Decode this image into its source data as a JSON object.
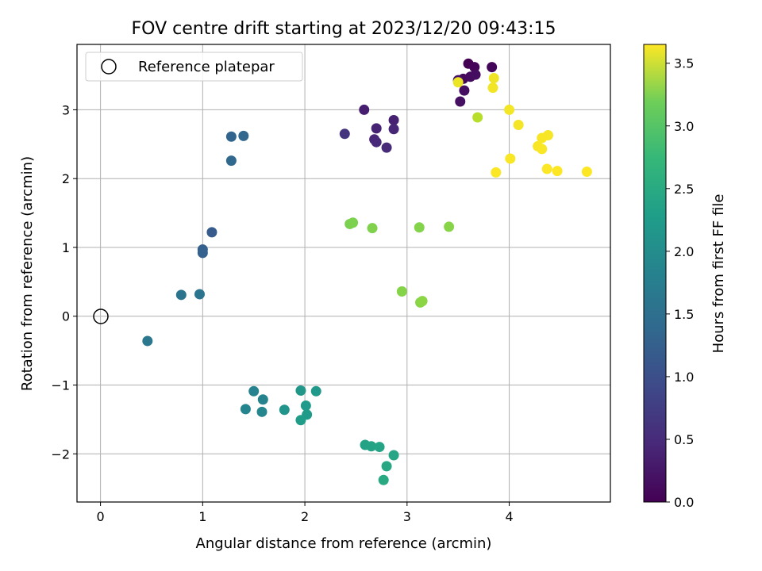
{
  "chart_data": {
    "type": "scatter",
    "title": "FOV centre drift starting at 2023/12/20 09:43:15",
    "xlabel": "Angular distance from reference (arcmin)",
    "ylabel": "Rotation from reference (arcmin)",
    "xlim": [
      -0.23,
      4.99
    ],
    "ylim": [
      -2.7,
      3.95
    ],
    "xticks": [
      0,
      1,
      2,
      3,
      4
    ],
    "yticks": [
      -2,
      -1,
      0,
      1,
      2,
      3
    ],
    "grid": true,
    "legend": {
      "position": "top-left",
      "entries": [
        "Reference platepar"
      ]
    },
    "reference_point": {
      "x": 0,
      "y": 0
    },
    "colorbar": {
      "label": "Hours from first FF file",
      "colormap": "viridis",
      "range": [
        0.0,
        3.65
      ],
      "ticks": [
        "0.0",
        "0.5",
        "1.0",
        "1.5",
        "2.0",
        "2.5",
        "3.0",
        "3.5"
      ],
      "tick_values": [
        0.0,
        0.5,
        1.0,
        1.5,
        2.0,
        2.5,
        3.0,
        3.5
      ]
    },
    "points": [
      {
        "x": 3.6,
        "y": 3.67,
        "c": 0.0
      },
      {
        "x": 3.66,
        "y": 3.62,
        "c": 0.03
      },
      {
        "x": 3.83,
        "y": 3.62,
        "c": 0.05
      },
      {
        "x": 3.55,
        "y": 3.45,
        "c": 0.08
      },
      {
        "x": 3.62,
        "y": 3.48,
        "c": 0.1
      },
      {
        "x": 3.67,
        "y": 3.51,
        "c": 0.12
      },
      {
        "x": 3.56,
        "y": 3.28,
        "c": 0.14
      },
      {
        "x": 3.52,
        "y": 3.12,
        "c": 0.16
      },
      {
        "x": 3.5,
        "y": 3.43,
        "c": 0.18
      },
      {
        "x": 2.58,
        "y": 3.0,
        "c": 0.3
      },
      {
        "x": 2.87,
        "y": 2.85,
        "c": 0.33
      },
      {
        "x": 2.7,
        "y": 2.73,
        "c": 0.35
      },
      {
        "x": 2.87,
        "y": 2.72,
        "c": 0.38
      },
      {
        "x": 2.68,
        "y": 2.57,
        "c": 0.4
      },
      {
        "x": 2.7,
        "y": 2.53,
        "c": 0.42
      },
      {
        "x": 2.8,
        "y": 2.45,
        "c": 0.44
      },
      {
        "x": 2.39,
        "y": 2.65,
        "c": 0.55
      },
      {
        "x": 1.09,
        "y": 1.22,
        "c": 1.05
      },
      {
        "x": 1.0,
        "y": 0.97,
        "c": 1.1
      },
      {
        "x": 1.0,
        "y": 0.92,
        "c": 1.12
      },
      {
        "x": 1.28,
        "y": 2.61,
        "c": 1.18
      },
      {
        "x": 1.4,
        "y": 2.62,
        "c": 1.2
      },
      {
        "x": 1.28,
        "y": 2.26,
        "c": 1.22
      },
      {
        "x": 0.79,
        "y": 0.31,
        "c": 1.4
      },
      {
        "x": 0.97,
        "y": 0.32,
        "c": 1.42
      },
      {
        "x": 0.46,
        "y": -0.36,
        "c": 1.45
      },
      {
        "x": 1.5,
        "y": -1.09,
        "c": 1.62
      },
      {
        "x": 1.59,
        "y": -1.21,
        "c": 1.64
      },
      {
        "x": 1.42,
        "y": -1.35,
        "c": 1.66
      },
      {
        "x": 1.58,
        "y": -1.39,
        "c": 1.68
      },
      {
        "x": 1.8,
        "y": -1.36,
        "c": 1.9
      },
      {
        "x": 1.96,
        "y": -1.08,
        "c": 1.92
      },
      {
        "x": 2.11,
        "y": -1.09,
        "c": 1.95
      },
      {
        "x": 2.01,
        "y": -1.3,
        "c": 1.97
      },
      {
        "x": 2.02,
        "y": -1.43,
        "c": 1.99
      },
      {
        "x": 1.96,
        "y": -1.51,
        "c": 2.01
      },
      {
        "x": 2.59,
        "y": -1.87,
        "c": 2.1
      },
      {
        "x": 2.65,
        "y": -1.89,
        "c": 2.12
      },
      {
        "x": 2.73,
        "y": -1.9,
        "c": 2.14
      },
      {
        "x": 2.87,
        "y": -2.02,
        "c": 2.16
      },
      {
        "x": 2.8,
        "y": -2.18,
        "c": 2.18
      },
      {
        "x": 2.77,
        "y": -2.38,
        "c": 2.2
      },
      {
        "x": 2.44,
        "y": 1.34,
        "c": 2.9
      },
      {
        "x": 2.47,
        "y": 1.36,
        "c": 2.92
      },
      {
        "x": 2.66,
        "y": 1.28,
        "c": 2.94
      },
      {
        "x": 3.12,
        "y": 1.29,
        "c": 2.96
      },
      {
        "x": 3.41,
        "y": 1.3,
        "c": 2.98
      },
      {
        "x": 2.95,
        "y": 0.36,
        "c": 2.97
      },
      {
        "x": 3.13,
        "y": 0.2,
        "c": 2.99
      },
      {
        "x": 3.15,
        "y": 0.22,
        "c": 3.01
      },
      {
        "x": 3.69,
        "y": 2.89,
        "c": 3.25
      },
      {
        "x": 3.5,
        "y": 3.4,
        "c": 3.55
      },
      {
        "x": 3.85,
        "y": 3.46,
        "c": 3.57
      },
      {
        "x": 3.84,
        "y": 3.32,
        "c": 3.58
      },
      {
        "x": 4.0,
        "y": 3.0,
        "c": 3.59
      },
      {
        "x": 4.09,
        "y": 2.78,
        "c": 3.6
      },
      {
        "x": 4.38,
        "y": 2.63,
        "c": 3.61
      },
      {
        "x": 4.32,
        "y": 2.59,
        "c": 3.62
      },
      {
        "x": 4.28,
        "y": 2.47,
        "c": 3.62
      },
      {
        "x": 4.32,
        "y": 2.43,
        "c": 3.63
      },
      {
        "x": 4.01,
        "y": 2.29,
        "c": 3.63
      },
      {
        "x": 3.87,
        "y": 2.09,
        "c": 3.64
      },
      {
        "x": 4.37,
        "y": 2.14,
        "c": 3.64
      },
      {
        "x": 4.47,
        "y": 2.11,
        "c": 3.65
      },
      {
        "x": 4.76,
        "y": 2.1,
        "c": 3.65
      }
    ]
  }
}
